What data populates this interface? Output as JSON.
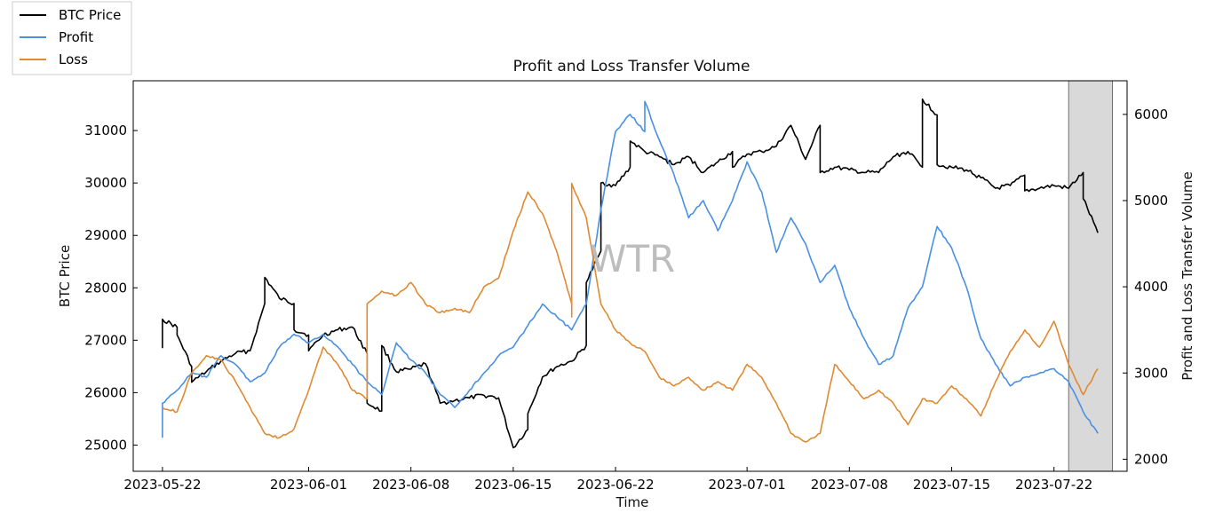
{
  "chart_data": {
    "type": "line",
    "title": "Profit and Loss Transfer Volume",
    "xlabel": "Time",
    "ylabel": "BTC Price",
    "y2label": "Profit and Loss Transfer Volume",
    "watermark": "WTR",
    "x_ticks": [
      "2023-05-22",
      "2023-06-01",
      "2023-06-08",
      "2023-06-15",
      "2023-06-22",
      "2023-07-01",
      "2023-07-08",
      "2023-07-15",
      "2023-07-22"
    ],
    "xlim": [
      "2023-05-20",
      "2023-07-27"
    ],
    "ylim": [
      24500,
      31950
    ],
    "y_ticks": [
      25000,
      26000,
      27000,
      28000,
      29000,
      30000,
      31000
    ],
    "y2lim": [
      1860,
      6390
    ],
    "y2_ticks": [
      2000,
      3000,
      4000,
      5000,
      6000
    ],
    "shaded_region": [
      "2023-07-23",
      "2023-07-26"
    ],
    "legend": {
      "placement": "outside-top-left",
      "entries": [
        "BTC Price",
        "Profit",
        "Loss"
      ]
    },
    "colors": {
      "BTC Price": "#000000",
      "Profit": "#4a90e2",
      "Loss": "#e08a32",
      "shade": "#d9d9d9"
    },
    "series": [
      {
        "name": "BTC Price",
        "axis": "left",
        "points": [
          [
            "2023-05-22",
            26850
          ],
          [
            "2023-05-22",
            27400
          ],
          [
            "2023-05-23",
            27250
          ],
          [
            "2023-05-23",
            27100
          ],
          [
            "2023-05-24",
            26500
          ],
          [
            "2023-05-24",
            26200
          ],
          [
            "2023-05-25",
            26400
          ],
          [
            "2023-05-26",
            26600
          ],
          [
            "2023-05-27",
            26750
          ],
          [
            "2023-05-28",
            26800
          ],
          [
            "2023-05-29",
            27700
          ],
          [
            "2023-05-29",
            28200
          ],
          [
            "2023-05-30",
            27800
          ],
          [
            "2023-05-31",
            27700
          ],
          [
            "2023-05-31",
            27200
          ],
          [
            "2023-06-01",
            27100
          ],
          [
            "2023-06-01",
            26800
          ],
          [
            "2023-06-02",
            27100
          ],
          [
            "2023-06-03",
            27200
          ],
          [
            "2023-06-04",
            27250
          ],
          [
            "2023-06-05",
            26750
          ],
          [
            "2023-06-05",
            25800
          ],
          [
            "2023-06-06",
            25650
          ],
          [
            "2023-06-06",
            26900
          ],
          [
            "2023-06-07",
            26400
          ],
          [
            "2023-06-08",
            26450
          ],
          [
            "2023-06-09",
            26550
          ],
          [
            "2023-06-10",
            25800
          ],
          [
            "2023-06-11",
            25850
          ],
          [
            "2023-06-12",
            25900
          ],
          [
            "2023-06-13",
            25950
          ],
          [
            "2023-06-14",
            25900
          ],
          [
            "2023-06-15",
            24950
          ],
          [
            "2023-06-16",
            25300
          ],
          [
            "2023-06-16",
            25600
          ],
          [
            "2023-06-17",
            26300
          ],
          [
            "2023-06-18",
            26500
          ],
          [
            "2023-06-19",
            26600
          ],
          [
            "2023-06-20",
            26900
          ],
          [
            "2023-06-20",
            28100
          ],
          [
            "2023-06-21",
            28700
          ],
          [
            "2023-06-21",
            30000
          ],
          [
            "2023-06-22",
            29950
          ],
          [
            "2023-06-23",
            30300
          ],
          [
            "2023-06-23",
            30800
          ],
          [
            "2023-06-24",
            30600
          ],
          [
            "2023-06-25",
            30500
          ],
          [
            "2023-06-26",
            30350
          ],
          [
            "2023-06-27",
            30500
          ],
          [
            "2023-06-28",
            30200
          ],
          [
            "2023-06-29",
            30400
          ],
          [
            "2023-06-30",
            30600
          ],
          [
            "2023-06-30",
            30300
          ],
          [
            "2023-07-01",
            30550
          ],
          [
            "2023-07-02",
            30600
          ],
          [
            "2023-07-03",
            30700
          ],
          [
            "2023-07-04",
            31100
          ],
          [
            "2023-07-05",
            30450
          ],
          [
            "2023-07-06",
            31100
          ],
          [
            "2023-07-06",
            30200
          ],
          [
            "2023-07-07",
            30300
          ],
          [
            "2023-07-08",
            30250
          ],
          [
            "2023-07-09",
            30200
          ],
          [
            "2023-07-10",
            30200
          ],
          [
            "2023-07-11",
            30500
          ],
          [
            "2023-07-12",
            30600
          ],
          [
            "2023-07-13",
            30300
          ],
          [
            "2023-07-13",
            31600
          ],
          [
            "2023-07-14",
            31300
          ],
          [
            "2023-07-14",
            30350
          ],
          [
            "2023-07-15",
            30300
          ],
          [
            "2023-07-16",
            30250
          ],
          [
            "2023-07-17",
            30100
          ],
          [
            "2023-07-18",
            29900
          ],
          [
            "2023-07-19",
            29950
          ],
          [
            "2023-07-20",
            30150
          ],
          [
            "2023-07-20",
            29850
          ],
          [
            "2023-07-21",
            29900
          ],
          [
            "2023-07-22",
            29950
          ],
          [
            "2023-07-23",
            29900
          ],
          [
            "2023-07-24",
            30200
          ],
          [
            "2023-07-24",
            29700
          ],
          [
            "2023-07-25",
            29050
          ]
        ]
      },
      {
        "name": "Profit",
        "axis": "right",
        "points": [
          [
            "2023-05-22",
            2250
          ],
          [
            "2023-05-22",
            2650
          ],
          [
            "2023-05-23",
            2800
          ],
          [
            "2023-05-24",
            3000
          ],
          [
            "2023-05-25",
            2950
          ],
          [
            "2023-05-26",
            3200
          ],
          [
            "2023-05-27",
            3100
          ],
          [
            "2023-05-28",
            2900
          ],
          [
            "2023-05-29",
            3000
          ],
          [
            "2023-05-30",
            3300
          ],
          [
            "2023-05-31",
            3450
          ],
          [
            "2023-06-01",
            3350
          ],
          [
            "2023-06-02",
            3450
          ],
          [
            "2023-06-03",
            3300
          ],
          [
            "2023-06-04",
            3100
          ],
          [
            "2023-06-05",
            2900
          ],
          [
            "2023-06-06",
            2750
          ],
          [
            "2023-06-07",
            3350
          ],
          [
            "2023-06-08",
            3150
          ],
          [
            "2023-06-09",
            3000
          ],
          [
            "2023-06-10",
            2750
          ],
          [
            "2023-06-11",
            2600
          ],
          [
            "2023-06-12",
            2800
          ],
          [
            "2023-06-13",
            3000
          ],
          [
            "2023-06-14",
            3200
          ],
          [
            "2023-06-15",
            3300
          ],
          [
            "2023-06-16",
            3550
          ],
          [
            "2023-06-17",
            3800
          ],
          [
            "2023-06-18",
            3650
          ],
          [
            "2023-06-19",
            3500
          ],
          [
            "2023-06-20",
            3800
          ],
          [
            "2023-06-21",
            4900
          ],
          [
            "2023-06-22",
            5800
          ],
          [
            "2023-06-23",
            6000
          ],
          [
            "2023-06-24",
            5800
          ],
          [
            "2023-06-24",
            6150
          ],
          [
            "2023-06-25",
            5700
          ],
          [
            "2023-06-26",
            5300
          ],
          [
            "2023-06-27",
            4800
          ],
          [
            "2023-06-28",
            5000
          ],
          [
            "2023-06-29",
            4650
          ],
          [
            "2023-06-30",
            5000
          ],
          [
            "2023-07-01",
            5450
          ],
          [
            "2023-07-02",
            5100
          ],
          [
            "2023-07-03",
            4400
          ],
          [
            "2023-07-04",
            4800
          ],
          [
            "2023-07-05",
            4500
          ],
          [
            "2023-07-06",
            4050
          ],
          [
            "2023-07-07",
            4250
          ],
          [
            "2023-07-08",
            3750
          ],
          [
            "2023-07-09",
            3400
          ],
          [
            "2023-07-10",
            3100
          ],
          [
            "2023-07-11",
            3200
          ],
          [
            "2023-07-12",
            3750
          ],
          [
            "2023-07-13",
            4000
          ],
          [
            "2023-07-14",
            4700
          ],
          [
            "2023-07-15",
            4450
          ],
          [
            "2023-07-16",
            4000
          ],
          [
            "2023-07-17",
            3400
          ],
          [
            "2023-07-18",
            3100
          ],
          [
            "2023-07-19",
            2850
          ],
          [
            "2023-07-20",
            2950
          ],
          [
            "2023-07-21",
            3000
          ],
          [
            "2023-07-22",
            3050
          ],
          [
            "2023-07-23",
            2900
          ],
          [
            "2023-07-24",
            2550
          ],
          [
            "2023-07-25",
            2300
          ]
        ]
      },
      {
        "name": "Loss",
        "axis": "right",
        "points": [
          [
            "2023-05-22",
            2600
          ],
          [
            "2023-05-23",
            2550
          ],
          [
            "2023-05-24",
            3000
          ],
          [
            "2023-05-25",
            3200
          ],
          [
            "2023-05-26",
            3150
          ],
          [
            "2023-05-27",
            2900
          ],
          [
            "2023-05-28",
            2600
          ],
          [
            "2023-05-29",
            2300
          ],
          [
            "2023-05-30",
            2250
          ],
          [
            "2023-05-31",
            2350
          ],
          [
            "2023-06-01",
            2800
          ],
          [
            "2023-06-02",
            3300
          ],
          [
            "2023-06-03",
            3100
          ],
          [
            "2023-06-04",
            2800
          ],
          [
            "2023-06-05",
            2700
          ],
          [
            "2023-06-05",
            3800
          ],
          [
            "2023-06-06",
            3950
          ],
          [
            "2023-06-07",
            3900
          ],
          [
            "2023-06-08",
            4050
          ],
          [
            "2023-06-09",
            3800
          ],
          [
            "2023-06-10",
            3700
          ],
          [
            "2023-06-11",
            3750
          ],
          [
            "2023-06-12",
            3700
          ],
          [
            "2023-06-13",
            4000
          ],
          [
            "2023-06-14",
            4100
          ],
          [
            "2023-06-15",
            4650
          ],
          [
            "2023-06-16",
            5100
          ],
          [
            "2023-06-17",
            4850
          ],
          [
            "2023-06-18",
            4400
          ],
          [
            "2023-06-19",
            3800
          ],
          [
            "2023-06-19",
            3650
          ],
          [
            "2023-06-19",
            5200
          ],
          [
            "2023-06-20",
            4800
          ],
          [
            "2023-06-21",
            3800
          ],
          [
            "2023-06-22",
            3500
          ],
          [
            "2023-06-23",
            3350
          ],
          [
            "2023-06-24",
            3250
          ],
          [
            "2023-06-25",
            2950
          ],
          [
            "2023-06-26",
            2850
          ],
          [
            "2023-06-27",
            2950
          ],
          [
            "2023-06-28",
            2800
          ],
          [
            "2023-06-29",
            2900
          ],
          [
            "2023-06-30",
            2800
          ],
          [
            "2023-07-01",
            3100
          ],
          [
            "2023-07-02",
            2950
          ],
          [
            "2023-07-03",
            2650
          ],
          [
            "2023-07-04",
            2300
          ],
          [
            "2023-07-05",
            2200
          ],
          [
            "2023-07-06",
            2300
          ],
          [
            "2023-07-07",
            3100
          ],
          [
            "2023-07-08",
            2900
          ],
          [
            "2023-07-09",
            2700
          ],
          [
            "2023-07-10",
            2800
          ],
          [
            "2023-07-11",
            2650
          ],
          [
            "2023-07-12",
            2400
          ],
          [
            "2023-07-13",
            2700
          ],
          [
            "2023-07-14",
            2650
          ],
          [
            "2023-07-15",
            2850
          ],
          [
            "2023-07-16",
            2700
          ],
          [
            "2023-07-17",
            2500
          ],
          [
            "2023-07-18",
            2900
          ],
          [
            "2023-07-19",
            3250
          ],
          [
            "2023-07-20",
            3500
          ],
          [
            "2023-07-21",
            3300
          ],
          [
            "2023-07-22",
            3600
          ],
          [
            "2023-07-23",
            3100
          ],
          [
            "2023-07-24",
            2750
          ],
          [
            "2023-07-25",
            3050
          ]
        ]
      }
    ]
  }
}
